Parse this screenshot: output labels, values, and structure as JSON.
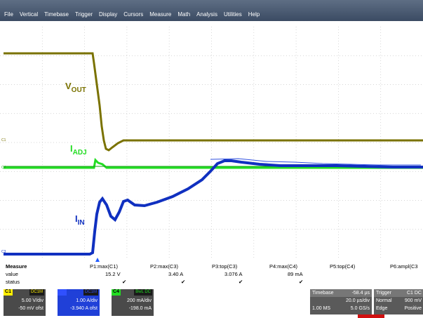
{
  "menu": [
    "File",
    "Vertical",
    "Timebase",
    "Trigger",
    "Display",
    "Cursors",
    "Measure",
    "Math",
    "Analysis",
    "Utilities",
    "Help"
  ],
  "traces": {
    "vout": {
      "label": "V",
      "sub": "OUT",
      "color": "#7a7200"
    },
    "iadj": {
      "label": "I",
      "sub": "ADJ",
      "color": "#22dd22"
    },
    "iin": {
      "label": "I",
      "sub": "IN",
      "color": "#1030c0"
    }
  },
  "channel_markers": {
    "c1": "C1",
    "c4": "C4",
    "c3": "C3"
  },
  "measure": {
    "header": "Measure",
    "row_value": "value",
    "row_status": "status",
    "params": [
      {
        "name": "P1:max(C1)",
        "value": "15.2 V",
        "status": "✔"
      },
      {
        "name": "P2:max(C3)",
        "value": "3.40 A",
        "status": "✔"
      },
      {
        "name": "P3:top(C3)",
        "value": "3.076 A",
        "status": "✔"
      },
      {
        "name": "P4:max(C4)",
        "value": "89 mA",
        "status": "✔"
      },
      {
        "name": "P5:top(C4)",
        "value": "",
        "status": ""
      },
      {
        "name": "P6:ampl(C3",
        "value": "",
        "status": ""
      }
    ]
  },
  "channels": [
    {
      "tag": "C1",
      "coupling": "DC1M",
      "scale": "5.00 V/div",
      "offset": "-50 mV ofst",
      "color": "#ffee00"
    },
    {
      "tag": "C3",
      "coupling": "DC1M",
      "scale": "1.00 A/div",
      "offset": "-3.940 A ofst",
      "color": "#3050ff"
    },
    {
      "tag": "C4",
      "coupling": "BwL DC",
      "scale": "200 mA/div",
      "offset": "-198.0 mA",
      "color": "#22dd22"
    }
  ],
  "timebase": {
    "label": "Timebase",
    "delay": "-58.4 µs",
    "div": "20.0 µs/div",
    "samples": "1.00 MS",
    "rate": "5.0 GS/s"
  },
  "trigger": {
    "label": "Trigger",
    "src": "C1 DC",
    "mode": "Normal",
    "level": "900 mV",
    "type": "Edge",
    "slope": "Positive"
  },
  "colors": {
    "menu_bg": "#4a5a70",
    "grid": "#c8c8c8",
    "panel": "#4a4a4a",
    "trigger_marker": "#1e5aff",
    "ch1": "#7a7200",
    "ch3": "#1030c0",
    "ch4": "#22dd22"
  }
}
